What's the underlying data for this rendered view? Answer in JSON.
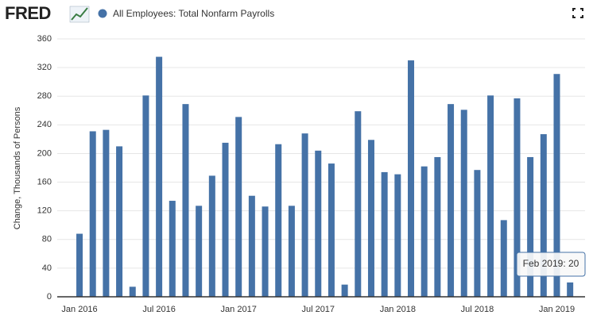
{
  "logo": "FRED",
  "chart_data": {
    "type": "bar",
    "series_name": "All Employees: Total Nonfarm Payrolls",
    "ylabel": "Change, Thousands of Persons",
    "color": "#4572a7",
    "categories": [
      "Jan 2016",
      null,
      null,
      null,
      null,
      null,
      "Jul 2016",
      null,
      null,
      null,
      null,
      null,
      "Jan 2017",
      null,
      null,
      null,
      null,
      null,
      "Jul 2017",
      null,
      null,
      null,
      null,
      null,
      "Jan 2018",
      null,
      null,
      null,
      null,
      null,
      "Jul 2018",
      null,
      null,
      null,
      null,
      null,
      "Jan 2019",
      null
    ],
    "values": [
      88,
      231,
      233,
      210,
      14,
      281,
      335,
      134,
      269,
      127,
      169,
      215,
      251,
      141,
      126,
      213,
      127,
      228,
      204,
      186,
      17,
      259,
      219,
      174,
      171,
      330,
      182,
      195,
      269,
      261,
      177,
      281,
      107,
      277,
      195,
      227,
      311,
      20
    ],
    "ylim": [
      0,
      360
    ],
    "yticks": [
      0,
      40,
      80,
      120,
      160,
      200,
      240,
      280,
      320,
      360
    ],
    "grid": true,
    "tooltip": "Feb 2019: 20"
  }
}
